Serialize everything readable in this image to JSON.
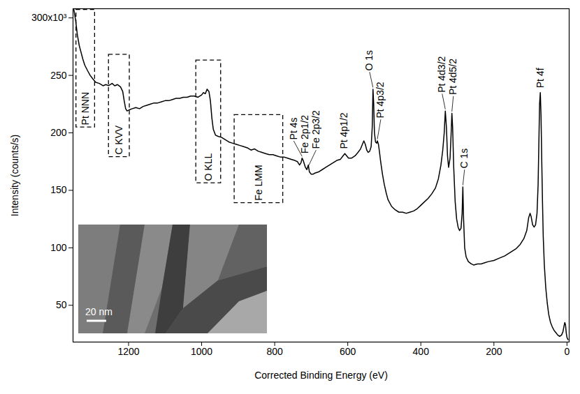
{
  "chart_data": {
    "type": "line",
    "x_label": "Corrected Binding Energy (eV)",
    "y_label": "Intensity (counts/s)",
    "color": "#000000",
    "grid": false,
    "xlim": [
      1352,
      -6
    ],
    "ylim": [
      18,
      308
    ],
    "xticks": [
      1200,
      1000,
      800,
      600,
      400,
      200,
      0
    ],
    "yticks": [
      50,
      100,
      150,
      200,
      250,
      {
        "value": 300,
        "label": "300x10³"
      }
    ],
    "x": [
      1350,
      1345,
      1340,
      1335,
      1330,
      1325,
      1320,
      1312,
      1305,
      1298,
      1290,
      1280,
      1270,
      1262,
      1255,
      1245,
      1238,
      1230,
      1222,
      1216,
      1212,
      1208,
      1204,
      1198,
      1190,
      1180,
      1170,
      1160,
      1150,
      1140,
      1130,
      1120,
      1110,
      1100,
      1090,
      1080,
      1070,
      1060,
      1050,
      1040,
      1030,
      1020,
      1010,
      1000,
      995,
      990,
      985,
      980,
      976,
      972,
      968,
      962,
      955,
      945,
      935,
      925,
      915,
      905,
      895,
      885,
      875,
      865,
      855,
      845,
      835,
      825,
      815,
      805,
      795,
      785,
      775,
      765,
      755,
      745,
      738,
      732,
      728,
      725,
      722,
      719,
      716,
      712,
      708,
      705,
      700,
      695,
      690,
      680,
      670,
      660,
      650,
      640,
      630,
      620,
      613,
      608,
      603,
      598,
      590,
      580,
      572,
      565,
      560,
      556,
      552,
      548,
      544,
      540,
      536,
      533,
      531,
      529,
      527,
      524,
      521,
      519,
      516,
      513,
      510,
      505,
      500,
      495,
      490,
      480,
      470,
      460,
      450,
      440,
      430,
      420,
      410,
      400,
      390,
      380,
      370,
      360,
      352,
      345,
      340,
      336,
      333,
      330,
      327,
      324,
      320,
      317,
      315,
      313,
      310,
      306,
      302,
      298,
      294,
      290,
      287,
      285,
      283,
      280,
      276,
      270,
      262,
      255,
      245,
      235,
      225,
      215,
      200,
      185,
      170,
      155,
      140,
      128,
      118,
      110,
      105,
      101,
      98,
      94,
      90,
      86,
      82,
      79,
      77,
      75,
      73,
      71,
      69,
      67,
      65,
      62,
      58,
      54,
      50,
      45,
      40,
      35,
      30,
      25,
      20,
      15,
      11,
      8,
      6,
      4,
      2,
      0,
      -3
    ],
    "values": [
      308,
      298,
      285,
      276,
      270,
      264,
      259,
      254,
      250,
      247,
      244,
      243,
      241,
      242,
      241,
      243,
      241,
      242,
      240,
      236,
      228,
      221,
      219,
      220,
      221,
      222,
      221,
      223,
      224,
      225,
      226,
      226,
      227,
      228,
      228,
      229,
      230,
      230,
      231,
      231,
      232,
      232,
      231,
      233,
      235,
      234,
      238,
      236,
      228,
      213,
      203,
      198,
      197,
      196,
      194,
      192,
      191,
      190,
      189,
      188,
      187,
      185,
      186,
      184,
      183,
      182,
      181,
      181,
      180,
      179,
      179,
      178,
      177,
      176,
      175,
      172,
      174,
      178,
      176,
      173,
      170,
      168,
      172,
      166,
      164,
      164,
      165,
      166,
      168,
      170,
      172,
      174,
      176,
      177,
      180,
      182,
      180,
      178,
      178,
      180,
      183,
      186,
      190,
      193,
      190,
      185,
      183,
      184,
      188,
      205,
      238,
      225,
      200,
      192,
      191,
      193,
      190,
      183,
      175,
      164,
      155,
      148,
      142,
      136,
      133,
      131,
      131,
      130,
      131,
      132,
      134,
      137,
      140,
      143,
      147,
      152,
      160,
      172,
      185,
      200,
      219,
      205,
      180,
      170,
      178,
      200,
      217,
      205,
      170,
      140,
      125,
      118,
      115,
      117,
      130,
      153,
      125,
      100,
      92,
      88,
      86,
      85,
      86,
      86,
      87,
      88,
      89,
      91,
      93,
      96,
      99,
      103,
      108,
      115,
      126,
      130,
      127,
      120,
      118,
      120,
      130,
      155,
      190,
      225,
      235,
      215,
      175,
      140,
      110,
      85,
      65,
      52,
      42,
      35,
      31,
      28,
      26,
      24,
      23,
      24,
      27,
      32,
      35,
      33,
      26,
      22,
      20
    ],
    "annotations": [
      {
        "text": "Pt 4s",
        "x": 725
      },
      {
        "text": "Fe 2p1/2",
        "x": 720
      },
      {
        "text": "Fe 2p3/2",
        "x": 707
      },
      {
        "text": "Pt 4p1/2",
        "x": 609
      },
      {
        "text": "O 1s",
        "x": 531
      },
      {
        "text": "Pt 4p3/2",
        "x": 519
      },
      {
        "text": "Pt 4d3/2",
        "x": 333
      },
      {
        "text": "Pt 4d5/2",
        "x": 315
      },
      {
        "text": "C 1s",
        "x": 285
      },
      {
        "text": "Pt 4f",
        "x": 73
      }
    ],
    "regions": [
      {
        "text": "Pt NNN",
        "x": [
          1292,
          1343
        ]
      },
      {
        "text": "C KVV",
        "x": [
          1197,
          1254
        ]
      },
      {
        "text": "O KLL",
        "x": [
          947,
          1015
        ]
      },
      {
        "text": "Fe LMM",
        "x": [
          777,
          910
        ]
      }
    ],
    "inset": {
      "scale_bar": "20 nm"
    }
  }
}
